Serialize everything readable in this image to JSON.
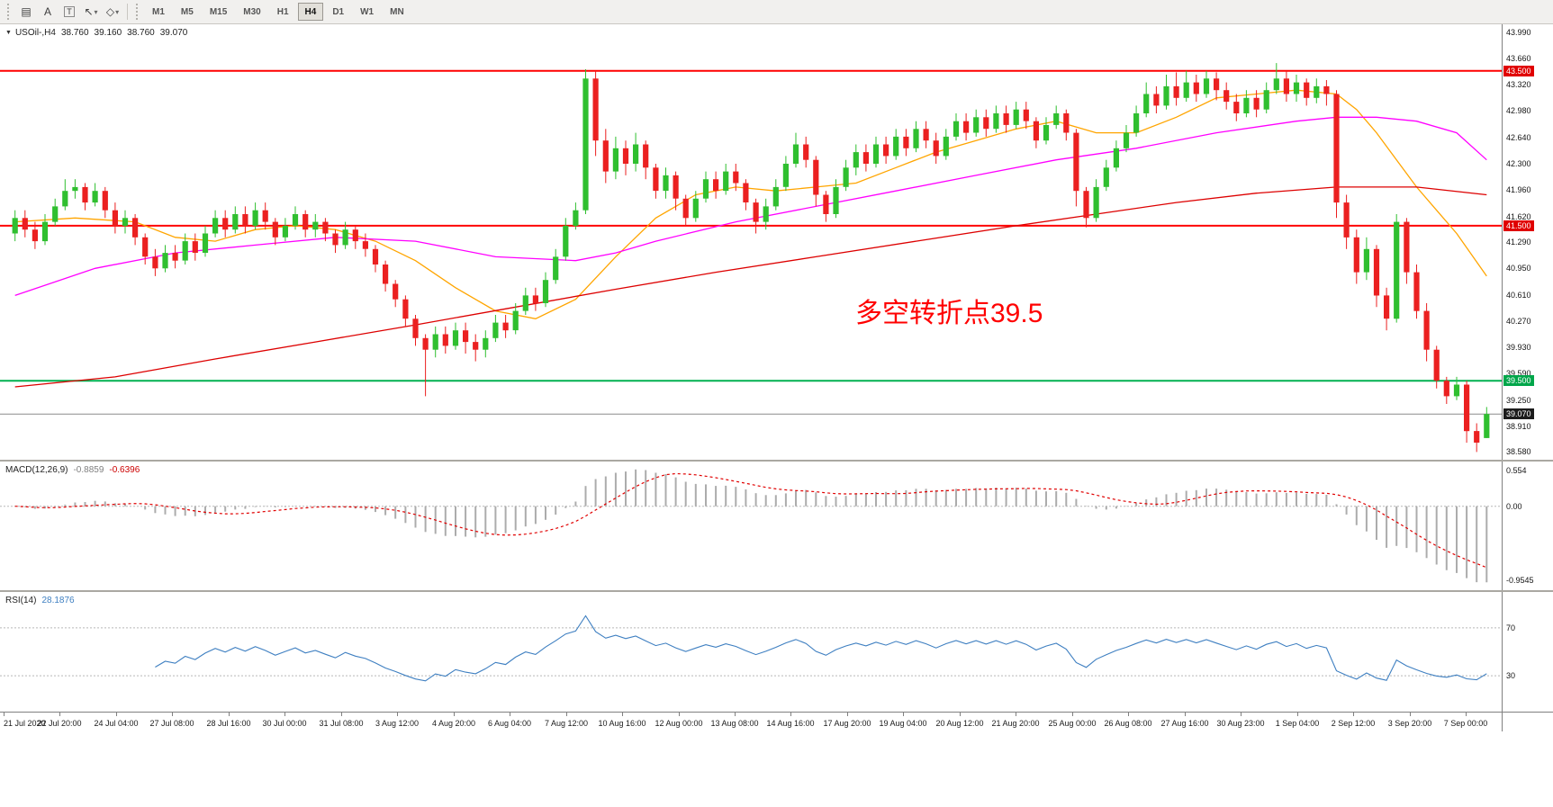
{
  "ui": {
    "toolbar": {
      "tools": [
        {
          "name": "objects-list",
          "glyph": "▤",
          "caret": false,
          "boxed": false
        },
        {
          "name": "text-tool",
          "glyph": "A",
          "caret": false,
          "boxed": false
        },
        {
          "name": "label-tool",
          "glyph": "T",
          "caret": false,
          "boxed": true
        },
        {
          "name": "cursor-tool",
          "glyph": "↖",
          "caret": true,
          "boxed": false
        },
        {
          "name": "shapes-tool",
          "glyph": "◇",
          "caret": true,
          "boxed": false
        }
      ],
      "timeframes": [
        "M1",
        "M5",
        "M15",
        "M30",
        "H1",
        "H4",
        "D1",
        "W1",
        "MN"
      ],
      "active_timeframe": "H4"
    },
    "title_overlay": {
      "symbol": "USOil-,H4",
      "open": "38.760",
      "high": "39.160",
      "low": "38.760",
      "close": "39.070"
    },
    "annotation": {
      "text": "多空转折点39.5",
      "color": "#FF0000"
    }
  },
  "chart_data": {
    "type": "candlestick",
    "symbol": "USOil-",
    "timeframe": "H4",
    "price_range": [
      38.48,
      44.1
    ],
    "price_axis_labels": [
      "43.990",
      "43.660",
      "43.320",
      "42.980",
      "42.640",
      "42.300",
      "41.960",
      "41.620",
      "41.290",
      "40.950",
      "40.610",
      "40.270",
      "39.930",
      "39.590",
      "39.250",
      "38.910",
      "38.580"
    ],
    "horizontal_lines": [
      {
        "price": 43.5,
        "label": "43.500",
        "color": "#FF0000",
        "badge_bg": "#E00000",
        "badge_fg": "#FFFFFF",
        "width": 2
      },
      {
        "price": 41.5,
        "label": "41.500",
        "color": "#FF0000",
        "badge_bg": "#E00000",
        "badge_fg": "#FFFFFF",
        "width": 2
      },
      {
        "price": 39.5,
        "label": "39.500",
        "color": "#00B050",
        "badge_bg": "#00A64A",
        "badge_fg": "#FFFFFF",
        "width": 2
      },
      {
        "price": 39.07,
        "label": "39.070",
        "color": "#8C8C8C",
        "badge_bg": "#1C1C1C",
        "badge_fg": "#FFFFFF",
        "width": 1
      }
    ],
    "bull_color": "#2FBF2F",
    "bear_color": "#EB2020",
    "candles": [
      [
        41.4,
        41.7,
        41.3,
        41.6
      ],
      [
        41.6,
        41.7,
        41.35,
        41.45
      ],
      [
        41.45,
        41.55,
        41.2,
        41.3
      ],
      [
        41.3,
        41.65,
        41.25,
        41.55
      ],
      [
        41.55,
        41.85,
        41.5,
        41.75
      ],
      [
        41.75,
        42.1,
        41.7,
        41.95
      ],
      [
        41.95,
        42.1,
        41.85,
        42.0
      ],
      [
        42.0,
        42.05,
        41.7,
        41.8
      ],
      [
        41.8,
        42.05,
        41.75,
        41.95
      ],
      [
        41.95,
        42.0,
        41.6,
        41.7
      ],
      [
        41.7,
        41.8,
        41.4,
        41.5
      ],
      [
        41.5,
        41.7,
        41.4,
        41.6
      ],
      [
        41.6,
        41.65,
        41.25,
        41.35
      ],
      [
        41.35,
        41.4,
        41.0,
        41.1
      ],
      [
        41.1,
        41.2,
        40.85,
        40.95
      ],
      [
        40.95,
        41.25,
        40.9,
        41.15
      ],
      [
        41.15,
        41.25,
        40.95,
        41.05
      ],
      [
        41.05,
        41.4,
        41.0,
        41.3
      ],
      [
        41.3,
        41.4,
        41.05,
        41.15
      ],
      [
        41.15,
        41.5,
        41.1,
        41.4
      ],
      [
        41.4,
        41.7,
        41.35,
        41.6
      ],
      [
        41.6,
        41.7,
        41.35,
        41.45
      ],
      [
        41.45,
        41.75,
        41.4,
        41.65
      ],
      [
        41.65,
        41.75,
        41.4,
        41.5
      ],
      [
        41.5,
        41.8,
        41.45,
        41.7
      ],
      [
        41.7,
        41.8,
        41.45,
        41.55
      ],
      [
        41.55,
        41.6,
        41.25,
        41.35
      ],
      [
        41.35,
        41.6,
        41.3,
        41.5
      ],
      [
        41.5,
        41.75,
        41.45,
        41.65
      ],
      [
        41.65,
        41.7,
        41.35,
        41.45
      ],
      [
        41.45,
        41.65,
        41.35,
        41.55
      ],
      [
        41.55,
        41.6,
        41.3,
        41.4
      ],
      [
        41.4,
        41.45,
        41.15,
        41.25
      ],
      [
        41.25,
        41.55,
        41.2,
        41.45
      ],
      [
        41.45,
        41.5,
        41.2,
        41.3
      ],
      [
        41.3,
        41.4,
        41.1,
        41.2
      ],
      [
        41.2,
        41.25,
        40.9,
        41.0
      ],
      [
        41.0,
        41.05,
        40.65,
        40.75
      ],
      [
        40.75,
        40.8,
        40.45,
        40.55
      ],
      [
        40.55,
        40.6,
        40.2,
        40.3
      ],
      [
        40.3,
        40.35,
        39.95,
        40.05
      ],
      [
        40.05,
        40.1,
        39.3,
        39.9
      ],
      [
        39.9,
        40.2,
        39.8,
        40.1
      ],
      [
        40.1,
        40.2,
        39.85,
        39.95
      ],
      [
        39.95,
        40.25,
        39.9,
        40.15
      ],
      [
        40.15,
        40.25,
        39.85,
        40.0
      ],
      [
        40.0,
        40.1,
        39.75,
        39.9
      ],
      [
        39.9,
        40.15,
        39.8,
        40.05
      ],
      [
        40.05,
        40.35,
        40.0,
        40.25
      ],
      [
        40.25,
        40.35,
        40.05,
        40.15
      ],
      [
        40.15,
        40.5,
        40.1,
        40.4
      ],
      [
        40.4,
        40.7,
        40.35,
        40.6
      ],
      [
        40.6,
        40.7,
        40.4,
        40.5
      ],
      [
        40.5,
        40.9,
        40.45,
        40.8
      ],
      [
        40.8,
        41.2,
        40.75,
        41.1
      ],
      [
        41.1,
        41.6,
        41.05,
        41.5
      ],
      [
        41.5,
        41.8,
        41.45,
        41.7
      ],
      [
        41.7,
        43.52,
        41.65,
        43.4
      ],
      [
        43.4,
        43.5,
        42.4,
        42.6
      ],
      [
        42.6,
        42.75,
        42.05,
        42.2
      ],
      [
        42.2,
        42.65,
        42.1,
        42.5
      ],
      [
        42.5,
        42.6,
        42.15,
        42.3
      ],
      [
        42.3,
        42.7,
        42.2,
        42.55
      ],
      [
        42.55,
        42.6,
        42.1,
        42.25
      ],
      [
        42.25,
        42.3,
        41.85,
        41.95
      ],
      [
        41.95,
        42.25,
        41.85,
        42.15
      ],
      [
        42.15,
        42.2,
        41.7,
        41.85
      ],
      [
        41.85,
        41.9,
        41.5,
        41.6
      ],
      [
        41.6,
        41.95,
        41.55,
        41.85
      ],
      [
        41.85,
        42.2,
        41.8,
        42.1
      ],
      [
        42.1,
        42.2,
        41.85,
        41.95
      ],
      [
        41.95,
        42.3,
        41.9,
        42.2
      ],
      [
        42.2,
        42.3,
        41.95,
        42.05
      ],
      [
        42.05,
        42.1,
        41.7,
        41.8
      ],
      [
        41.8,
        41.85,
        41.4,
        41.55
      ],
      [
        41.55,
        41.85,
        41.45,
        41.75
      ],
      [
        41.75,
        42.1,
        41.7,
        42.0
      ],
      [
        42.0,
        42.4,
        41.95,
        42.3
      ],
      [
        42.3,
        42.7,
        42.25,
        42.55
      ],
      [
        42.55,
        42.65,
        42.25,
        42.35
      ],
      [
        42.35,
        42.4,
        41.75,
        41.9
      ],
      [
        41.9,
        41.95,
        41.55,
        41.65
      ],
      [
        41.65,
        42.1,
        41.6,
        42.0
      ],
      [
        42.0,
        42.35,
        41.95,
        42.25
      ],
      [
        42.25,
        42.55,
        42.15,
        42.45
      ],
      [
        42.45,
        42.55,
        42.2,
        42.3
      ],
      [
        42.3,
        42.65,
        42.25,
        42.55
      ],
      [
        42.55,
        42.65,
        42.3,
        42.4
      ],
      [
        42.4,
        42.75,
        42.35,
        42.65
      ],
      [
        42.65,
        42.75,
        42.4,
        42.5
      ],
      [
        42.5,
        42.85,
        42.45,
        42.75
      ],
      [
        42.75,
        42.85,
        42.5,
        42.6
      ],
      [
        42.6,
        42.7,
        42.3,
        42.4
      ],
      [
        42.4,
        42.75,
        42.35,
        42.65
      ],
      [
        42.65,
        42.95,
        42.6,
        42.85
      ],
      [
        42.85,
        42.95,
        42.6,
        42.7
      ],
      [
        42.7,
        43.0,
        42.65,
        42.9
      ],
      [
        42.9,
        43.0,
        42.65,
        42.75
      ],
      [
        42.75,
        43.05,
        42.7,
        42.95
      ],
      [
        42.95,
        43.05,
        42.7,
        42.8
      ],
      [
        42.8,
        43.1,
        42.75,
        43.0
      ],
      [
        43.0,
        43.1,
        42.75,
        42.85
      ],
      [
        42.85,
        42.9,
        42.5,
        42.6
      ],
      [
        42.6,
        42.9,
        42.55,
        42.8
      ],
      [
        42.8,
        43.05,
        42.75,
        42.95
      ],
      [
        42.95,
        43.0,
        42.6,
        42.7
      ],
      [
        42.7,
        42.75,
        41.75,
        41.95
      ],
      [
        41.95,
        42.0,
        41.48,
        41.6
      ],
      [
        41.6,
        42.1,
        41.55,
        42.0
      ],
      [
        42.0,
        42.35,
        41.95,
        42.25
      ],
      [
        42.25,
        42.6,
        42.2,
        42.5
      ],
      [
        42.5,
        42.8,
        42.45,
        42.7
      ],
      [
        42.7,
        43.05,
        42.65,
        42.95
      ],
      [
        42.95,
        43.35,
        42.9,
        43.2
      ],
      [
        43.2,
        43.3,
        42.95,
        43.05
      ],
      [
        43.05,
        43.45,
        43.0,
        43.3
      ],
      [
        43.3,
        43.48,
        43.05,
        43.15
      ],
      [
        43.15,
        43.5,
        43.1,
        43.35
      ],
      [
        43.35,
        43.45,
        43.1,
        43.2
      ],
      [
        43.2,
        43.5,
        43.15,
        43.4
      ],
      [
        43.4,
        43.48,
        43.12,
        43.25
      ],
      [
        43.25,
        43.35,
        43.0,
        43.1
      ],
      [
        43.1,
        43.2,
        42.85,
        42.95
      ],
      [
        42.95,
        43.25,
        42.9,
        43.15
      ],
      [
        43.15,
        43.25,
        42.9,
        43.0
      ],
      [
        43.0,
        43.35,
        42.95,
        43.25
      ],
      [
        43.25,
        43.6,
        43.2,
        43.4
      ],
      [
        43.4,
        43.5,
        43.1,
        43.2
      ],
      [
        43.2,
        43.45,
        43.1,
        43.35
      ],
      [
        43.35,
        43.4,
        43.05,
        43.15
      ],
      [
        43.15,
        43.4,
        43.08,
        43.3
      ],
      [
        43.3,
        43.38,
        43.05,
        43.2
      ],
      [
        43.2,
        43.25,
        41.6,
        41.8
      ],
      [
        41.8,
        41.9,
        41.2,
        41.35
      ],
      [
        41.35,
        41.45,
        40.75,
        40.9
      ],
      [
        40.9,
        41.35,
        40.8,
        41.2
      ],
      [
        41.2,
        41.25,
        40.45,
        40.6
      ],
      [
        40.6,
        40.7,
        40.15,
        40.3
      ],
      [
        40.3,
        41.65,
        40.25,
        41.55
      ],
      [
        41.55,
        41.6,
        40.75,
        40.9
      ],
      [
        40.9,
        41.0,
        40.3,
        40.4
      ],
      [
        40.4,
        40.5,
        39.75,
        39.9
      ],
      [
        39.9,
        39.95,
        39.4,
        39.5
      ],
      [
        39.5,
        39.55,
        39.2,
        39.3
      ],
      [
        39.3,
        39.55,
        39.25,
        39.45
      ],
      [
        39.45,
        39.5,
        38.7,
        38.85
      ],
      [
        38.85,
        38.95,
        38.58,
        38.7
      ],
      [
        38.76,
        39.16,
        38.76,
        39.07
      ]
    ],
    "moving_averages": [
      {
        "name": "fast",
        "color": "#FFA500",
        "points": [
          [
            0,
            41.55
          ],
          [
            6,
            41.6
          ],
          [
            12,
            41.55
          ],
          [
            16,
            41.35
          ],
          [
            20,
            41.3
          ],
          [
            24,
            41.45
          ],
          [
            28,
            41.5
          ],
          [
            32,
            41.45
          ],
          [
            36,
            41.3
          ],
          [
            40,
            41.05
          ],
          [
            44,
            40.7
          ],
          [
            48,
            40.4
          ],
          [
            52,
            40.3
          ],
          [
            56,
            40.55
          ],
          [
            60,
            41.1
          ],
          [
            64,
            41.6
          ],
          [
            68,
            41.9
          ],
          [
            72,
            42.0
          ],
          [
            76,
            41.95
          ],
          [
            80,
            42.0
          ],
          [
            84,
            42.05
          ],
          [
            88,
            42.25
          ],
          [
            92,
            42.45
          ],
          [
            96,
            42.6
          ],
          [
            100,
            42.75
          ],
          [
            104,
            42.85
          ],
          [
            108,
            42.7
          ],
          [
            112,
            42.7
          ],
          [
            116,
            42.9
          ],
          [
            120,
            43.15
          ],
          [
            124,
            43.2
          ],
          [
            128,
            43.25
          ],
          [
            132,
            43.2
          ],
          [
            134,
            43.0
          ],
          [
            136,
            42.7
          ],
          [
            138,
            42.35
          ],
          [
            140,
            42.0
          ],
          [
            142,
            41.7
          ],
          [
            144,
            41.4
          ],
          [
            147,
            40.85
          ]
        ]
      },
      {
        "name": "medium",
        "color": "#FF00FF",
        "points": [
          [
            0,
            40.6
          ],
          [
            8,
            40.95
          ],
          [
            16,
            41.15
          ],
          [
            24,
            41.25
          ],
          [
            32,
            41.35
          ],
          [
            40,
            41.3
          ],
          [
            48,
            41.1
          ],
          [
            56,
            41.05
          ],
          [
            60,
            41.15
          ],
          [
            64,
            41.3
          ],
          [
            72,
            41.55
          ],
          [
            80,
            41.75
          ],
          [
            88,
            41.95
          ],
          [
            96,
            42.15
          ],
          [
            104,
            42.35
          ],
          [
            112,
            42.5
          ],
          [
            120,
            42.7
          ],
          [
            128,
            42.85
          ],
          [
            132,
            42.9
          ],
          [
            136,
            42.9
          ],
          [
            140,
            42.85
          ],
          [
            144,
            42.7
          ],
          [
            147,
            42.35
          ]
        ]
      },
      {
        "name": "slow",
        "color": "#DD0000",
        "points": [
          [
            0,
            39.42
          ],
          [
            10,
            39.55
          ],
          [
            20,
            39.78
          ],
          [
            30,
            40.0
          ],
          [
            40,
            40.22
          ],
          [
            50,
            40.45
          ],
          [
            60,
            40.68
          ],
          [
            70,
            40.9
          ],
          [
            80,
            41.1
          ],
          [
            90,
            41.3
          ],
          [
            100,
            41.5
          ],
          [
            108,
            41.65
          ],
          [
            116,
            41.8
          ],
          [
            124,
            41.92
          ],
          [
            132,
            42.0
          ],
          [
            140,
            42.0
          ],
          [
            147,
            41.9
          ]
        ]
      }
    ],
    "macd": {
      "label": "MACD(12,26,9)",
      "value_main": "-0.8859",
      "value_signal": "-0.6396",
      "value_main_color": "#808080",
      "value_signal_color": "#CC0000",
      "fast": 12,
      "slow": 26,
      "signal": 9,
      "axis_labels": {
        "high": "0.554",
        "zero": "0.00",
        "low": "-0.9545"
      },
      "hist_color": "#ACACAC",
      "signal_color": "#E00000"
    },
    "rsi": {
      "label": "RSI(14)",
      "value": "28.1876",
      "value_color": "#3E7FC1",
      "period": 14,
      "levels": [
        70,
        30
      ],
      "line_color": "#3E7FC1",
      "range": [
        0,
        100
      ]
    },
    "time_axis_labels": [
      "21 Jul 2020",
      "22 Jul 20:00",
      "24 Jul 04:00",
      "27 Jul 08:00",
      "28 Jul 16:00",
      "30 Jul 00:00",
      "31 Jul 08:00",
      "3 Aug 12:00",
      "4 Aug 20:00",
      "6 Aug 04:00",
      "7 Aug 12:00",
      "10 Aug 16:00",
      "12 Aug 00:00",
      "13 Aug 08:00",
      "14 Aug 16:00",
      "17 Aug 20:00",
      "19 Aug 04:00",
      "20 Aug 12:00",
      "21 Aug 20:00",
      "25 Aug 00:00",
      "26 Aug 08:00",
      "27 Aug 16:00",
      "30 Aug 23:00",
      "1 Sep 04:00",
      "2 Sep 12:00",
      "3 Sep 20:00",
      "7 Sep 00:00"
    ]
  }
}
